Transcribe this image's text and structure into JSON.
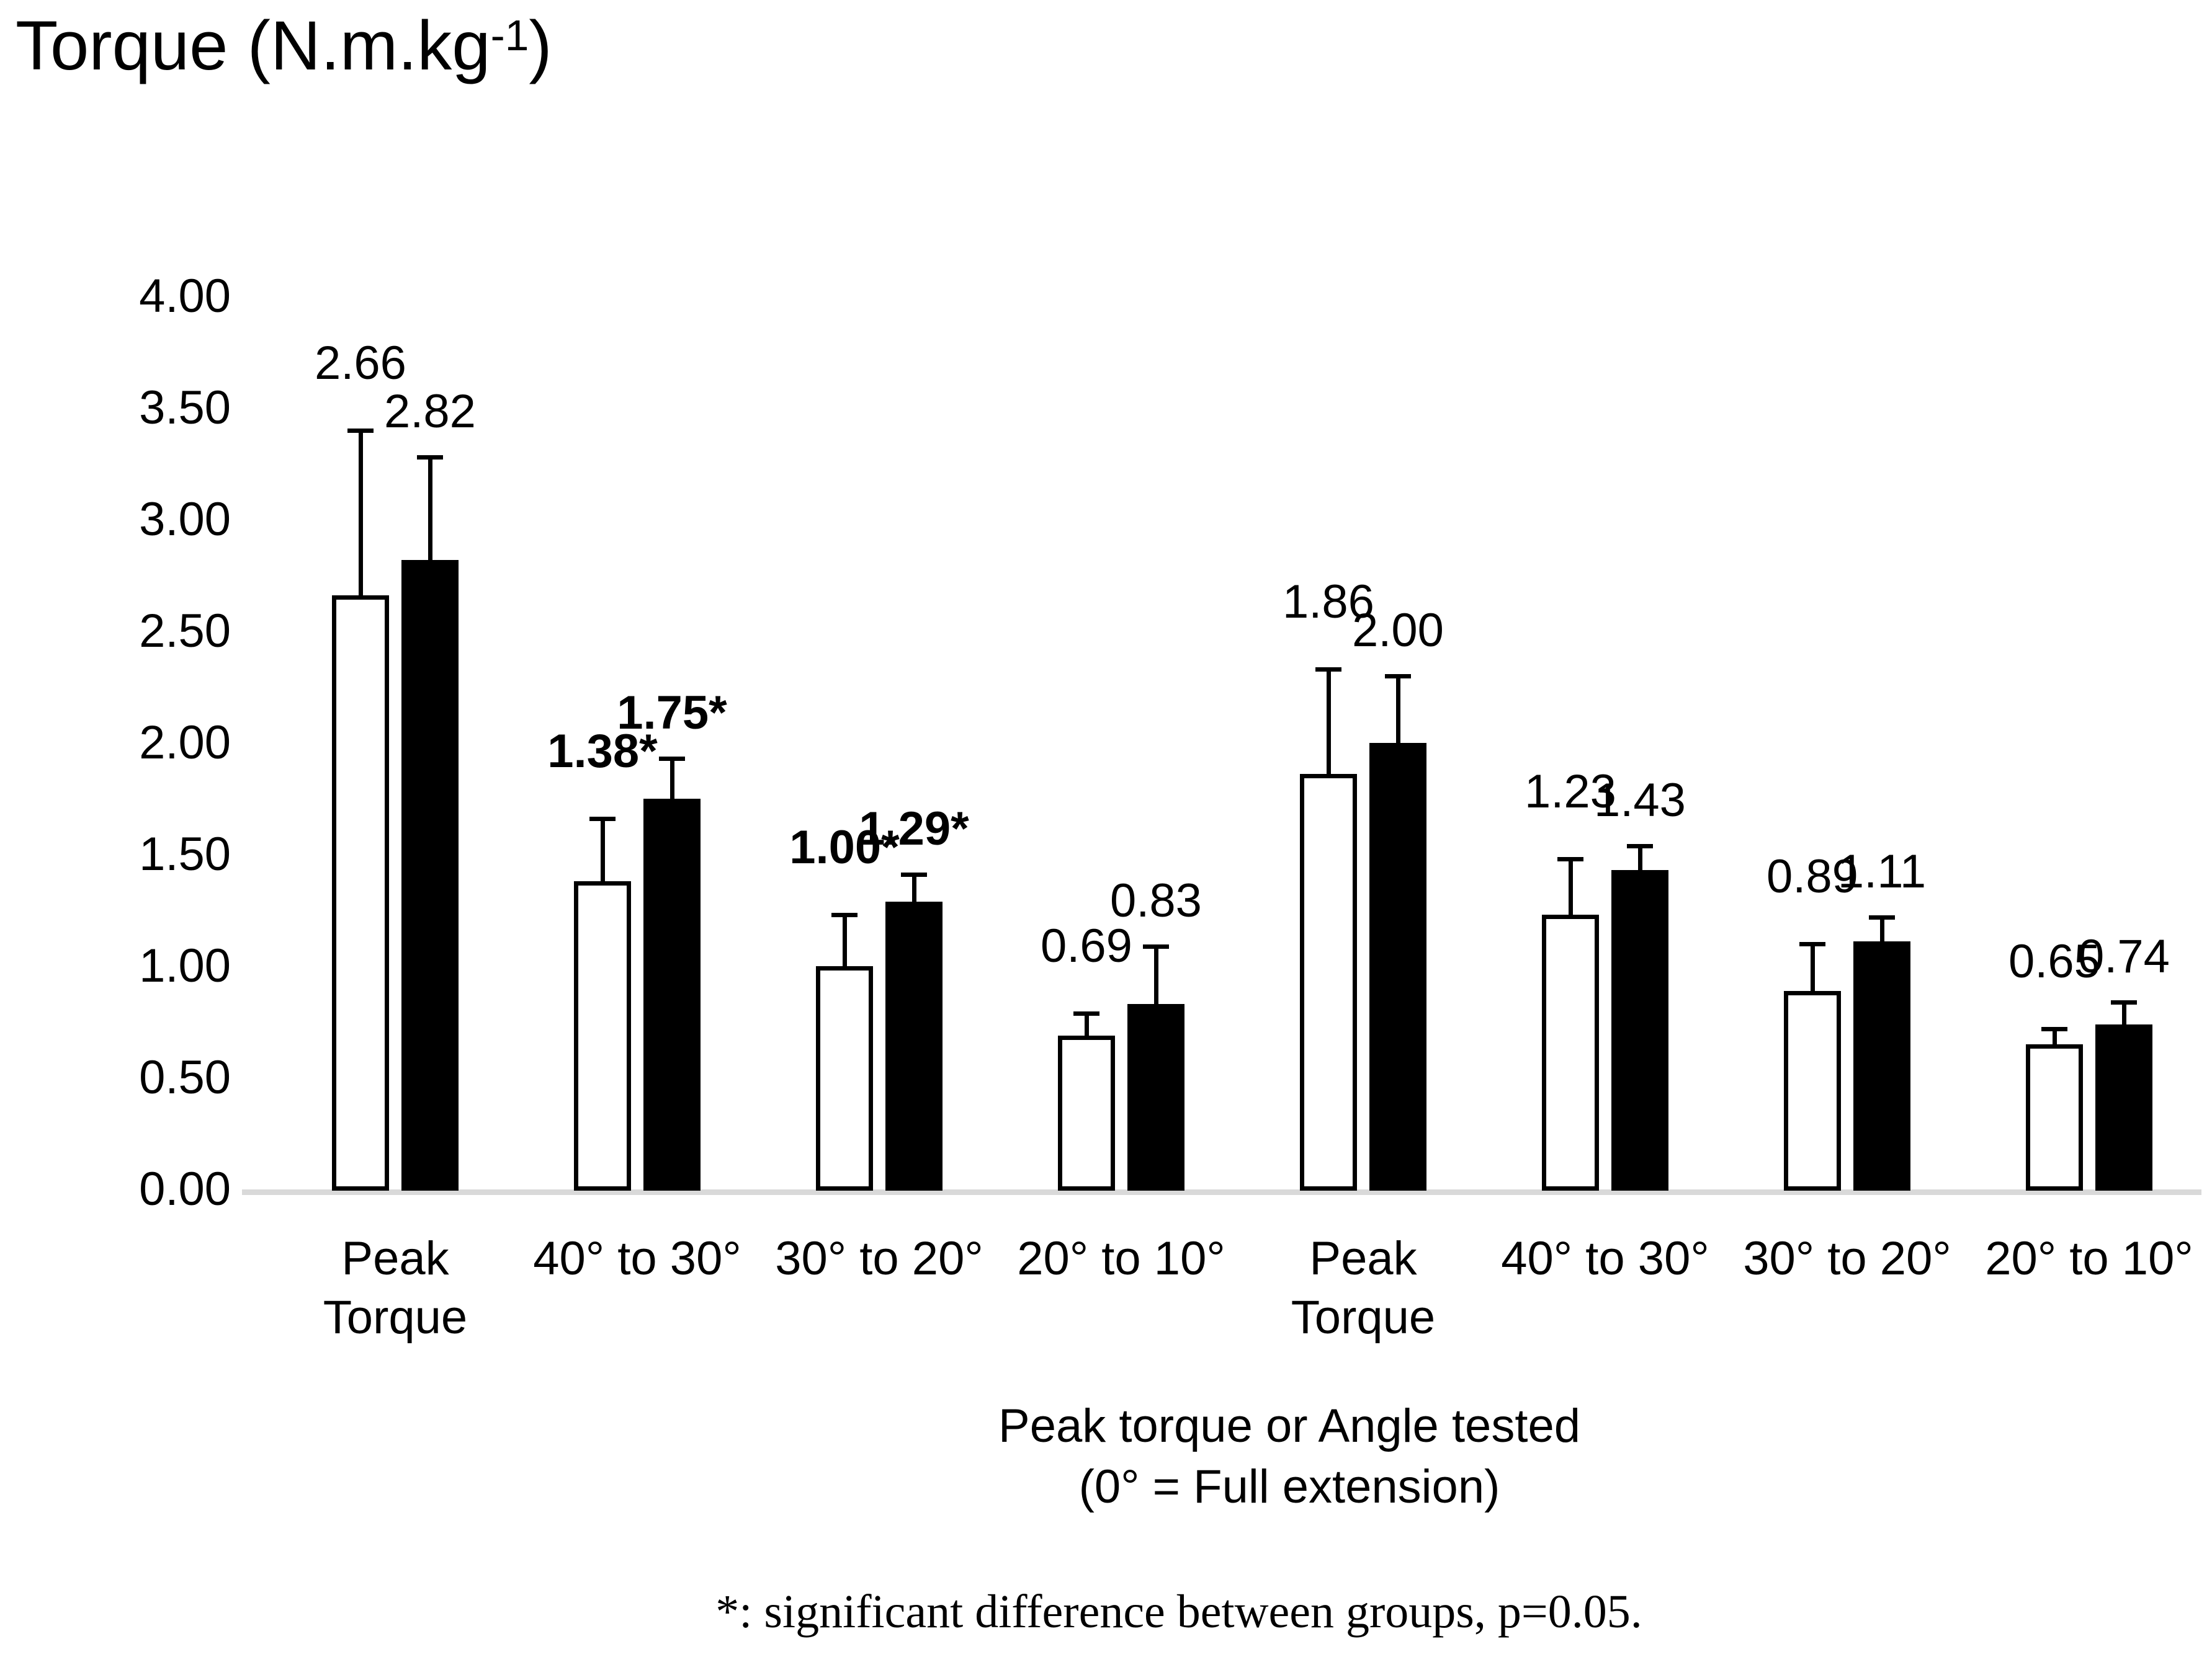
{
  "title": {
    "text": "Torque (N.m.kg",
    "superscript": "-1",
    "suffix": ")"
  },
  "y_axis": {
    "tick_labels": [
      "4.00",
      "3.50",
      "3.00",
      "2.50",
      "2.00",
      "1.50",
      "1.00",
      "0.50",
      "0.00"
    ],
    "min": 0.0,
    "max": 4.0,
    "step": 0.5
  },
  "x_axis": {
    "title_line1": "Peak torque or Angle tested",
    "title_line2": "(0° = Full extension)",
    "category_labels": [
      "Peak\nTorque",
      "40° to 30°",
      "30° to 20°",
      "20° to 10°",
      "Peak\nTorque",
      "40° to 30°",
      "30° to 20°",
      "20° to 10°"
    ]
  },
  "footnote": "*: significant difference between groups, p=0.05.",
  "colors": {
    "axis_line": "#d9d9d9",
    "bar_outline": "#000000",
    "open_bar_fill": "#ffffff",
    "filled_bar_fill": "#000000",
    "text": "#000000"
  },
  "chart_data": {
    "type": "bar",
    "categories": [
      "Peak Torque",
      "40° to 30°",
      "30° to 20°",
      "20° to 10°",
      "Peak Torque",
      "40° to 30°",
      "30° to 20°",
      "20° to 10°"
    ],
    "series": [
      {
        "name": "open-bars",
        "fill": "#ffffff",
        "values": [
          2.66,
          1.38,
          1.0,
          0.69,
          1.86,
          1.23,
          0.89,
          0.65
        ],
        "error_top": [
          3.4,
          1.66,
          1.23,
          0.79,
          2.33,
          1.48,
          1.1,
          0.72
        ],
        "labels": [
          "2.66",
          "1.38*",
          "1.00*",
          "0.69",
          "1.86",
          "1.23",
          "0.89",
          "0.65"
        ],
        "bold": [
          false,
          true,
          true,
          false,
          false,
          false,
          false,
          false
        ]
      },
      {
        "name": "filled-bars",
        "fill": "#000000",
        "values": [
          2.82,
          1.75,
          1.29,
          0.83,
          2.0,
          1.43,
          1.11,
          0.74
        ],
        "error_top": [
          3.28,
          1.93,
          1.41,
          1.09,
          2.3,
          1.54,
          1.22,
          0.84
        ],
        "labels": [
          "2.82",
          "1.75*",
          "1.29*",
          "0.83",
          "2.00",
          "1.43",
          "1.11",
          "0.74"
        ],
        "bold": [
          false,
          true,
          true,
          false,
          false,
          false,
          false,
          false
        ]
      }
    ],
    "ylim": [
      0,
      4
    ],
    "ylabel": "Torque (N.m.kg-1)",
    "xlabel": "Peak torque or Angle tested (0° = Full extension)",
    "grid": false,
    "legend": "none",
    "error_bars": "upper standard deviation whiskers"
  }
}
